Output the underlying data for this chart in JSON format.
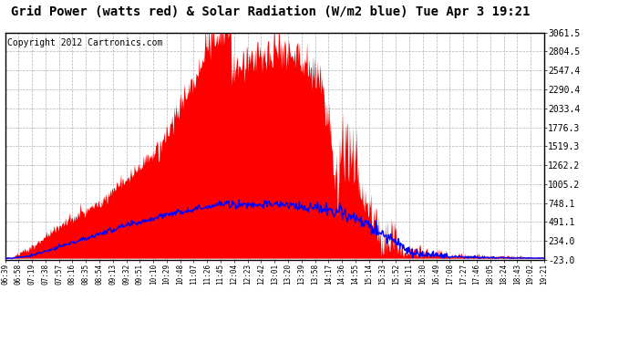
{
  "title": "Grid Power (watts red) & Solar Radiation (W/m2 blue) Tue Apr 3 19:21",
  "copyright": "Copyright 2012 Cartronics.com",
  "y_min": -23.0,
  "y_max": 3061.5,
  "yticks": [
    3061.5,
    2804.5,
    2547.4,
    2290.4,
    2033.4,
    1776.3,
    1519.3,
    1262.2,
    1005.2,
    748.1,
    491.1,
    234.0,
    -23.0
  ],
  "xtick_labels": [
    "06:39",
    "06:58",
    "07:19",
    "07:38",
    "07:57",
    "08:16",
    "08:35",
    "08:54",
    "09:13",
    "09:32",
    "09:51",
    "10:10",
    "10:29",
    "10:48",
    "11:07",
    "11:26",
    "11:45",
    "12:04",
    "12:23",
    "12:42",
    "13:01",
    "13:20",
    "13:39",
    "13:58",
    "14:17",
    "14:36",
    "14:55",
    "15:14",
    "15:33",
    "15:52",
    "16:11",
    "16:30",
    "16:49",
    "17:08",
    "17:27",
    "17:46",
    "18:05",
    "18:24",
    "18:43",
    "19:02",
    "19:21"
  ],
  "background_color": "#ffffff",
  "plot_bg_color": "#ffffff",
  "grid_color": "#aaaaaa",
  "fill_color": "#ff0000",
  "line_color": "#0000ff",
  "title_fontsize": 10,
  "copyright_fontsize": 7,
  "n_points": 760
}
